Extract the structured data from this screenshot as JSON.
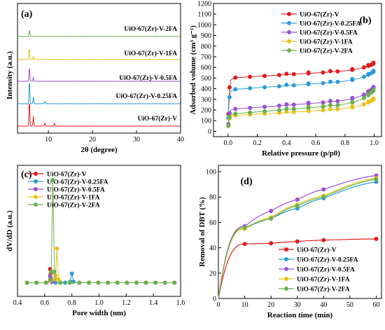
{
  "chart_data": [
    {
      "id": "a",
      "type": "line",
      "panel_label": "(a)",
      "xlabel": "2θ (degree)",
      "ylabel": "Intensity (a.u.)",
      "xlim": [
        3,
        40
      ],
      "xticks": [
        10,
        20,
        30,
        40
      ],
      "series": [
        {
          "name": "UiO-67(Zr)-V",
          "color": "#e31a1c",
          "peaks": [
            [
              5.7,
              1.0
            ],
            [
              6.6,
              0.35
            ],
            [
              9.2,
              0.12
            ],
            [
              11.4,
              0.1
            ]
          ],
          "noise": 0.04
        },
        {
          "name": "UiO-67(Zr)-V-0.25FA",
          "color": "#2b9bd6",
          "peaks": [
            [
              5.7,
              0.9
            ],
            [
              6.6,
              0.25
            ],
            [
              9.2,
              0.08
            ]
          ],
          "noise": 0.05
        },
        {
          "name": "UiO-67(Zr)-V-0.5FA",
          "color": "#9a4fd6",
          "peaks": [
            [
              5.7,
              0.55
            ],
            [
              6.6,
              0.15
            ]
          ],
          "noise": 0.05
        },
        {
          "name": "UiO-67(Zr)-V-1FA",
          "color": "#e8c21a",
          "peaks": [
            [
              5.7,
              0.45
            ],
            [
              6.6,
              0.12
            ]
          ],
          "noise": 0.06
        },
        {
          "name": "UiO-67(Zr)-V-2FA",
          "color": "#6ab04c",
          "peaks": [
            [
              5.7,
              0.25
            ]
          ],
          "noise": 0.07
        }
      ]
    },
    {
      "id": "b",
      "type": "line",
      "panel_label": "(b)",
      "xlabel": "Relative pressure (p/p0)",
      "ylabel": "Adsorbed volume (cm³ g⁻¹)",
      "xlim": [
        -0.1,
        1.05
      ],
      "ylim": [
        -50,
        1200
      ],
      "xticks": [
        0.0,
        0.2,
        0.4,
        0.6,
        0.8,
        1.0
      ],
      "yticks": [
        0,
        100,
        200,
        300,
        400,
        500,
        600,
        700,
        800,
        900,
        1000,
        1100,
        1200
      ],
      "legend_position": "top-right",
      "series": [
        {
          "name": "UiO-67(Zr)-V",
          "color": "#e31a1c",
          "y0": 30,
          "plateau": 470,
          "slope": 80,
          "end_rise": 60
        },
        {
          "name": "UiO-67(Zr)-V-0.25FA",
          "color": "#2b9bd6",
          "y0": 20,
          "plateau": 370,
          "slope": 95,
          "end_rise": 80
        },
        {
          "name": "UiO-67(Zr)-V-0.5FA",
          "color": "#9a4fd6",
          "y0": 15,
          "plateau": 190,
          "slope": 100,
          "end_rise": 110
        },
        {
          "name": "UiO-67(Zr)-V-1FA",
          "color": "#e8c21a",
          "y0": 10,
          "plateau": 135,
          "slope": 80,
          "end_rise": 80
        },
        {
          "name": "UiO-67(Zr)-V-2FA",
          "color": "#6ab04c",
          "y0": 10,
          "plateau": 150,
          "slope": 110,
          "end_rise": 120
        }
      ]
    },
    {
      "id": "c",
      "type": "line",
      "panel_label": "(c)",
      "xlabel": "Pore width (nm)",
      "ylabel": "dV/dD (a.u.)",
      "xlim": [
        0.4,
        1.6
      ],
      "ylim": [
        0,
        1.15
      ],
      "xticks": [
        0.4,
        0.6,
        0.8,
        1.0,
        1.2,
        1.4,
        1.6
      ],
      "legend_position": "top-left",
      "series": [
        {
          "name": "UiO-67(Zr)-V",
          "color": "#e31a1c",
          "peaks": [
            [
              0.64,
              0.12
            ]
          ]
        },
        {
          "name": "UiO-67(Zr)-V-0.25FA",
          "color": "#2b9bd6",
          "peaks": [
            [
              0.8,
              0.08
            ]
          ]
        },
        {
          "name": "UiO-67(Zr)-V-0.5FA",
          "color": "#9a4fd6",
          "peaks": [
            [
              0.64,
              0.06
            ]
          ]
        },
        {
          "name": "UiO-67(Zr)-V-1FA",
          "color": "#e8c21a",
          "peaks": [
            [
              0.69,
              0.3
            ]
          ]
        },
        {
          "name": "UiO-67(Zr)-V-2FA",
          "color": "#6ab04c",
          "peaks": [
            [
              0.66,
              0.9
            ]
          ]
        }
      ]
    },
    {
      "id": "d",
      "type": "line",
      "panel_label": "(d)",
      "xlabel": "Reaction time (min)",
      "ylabel": "Removal of DBT (%)",
      "xlim": [
        0,
        62
      ],
      "ylim": [
        0,
        105
      ],
      "xticks": [
        0,
        10,
        20,
        30,
        40,
        50,
        60
      ],
      "yticks": [
        0,
        20,
        40,
        60,
        80,
        100
      ],
      "legend_position": "bottom-right",
      "x": [
        10,
        20,
        30,
        40,
        60
      ],
      "series": [
        {
          "name": "UiO-67(Zr)-V",
          "color": "#e31a1c",
          "values": [
            43,
            43.5,
            45,
            46,
            47
          ]
        },
        {
          "name": "UiO-67(Zr)-V-0.25FA",
          "color": "#2b9bd6",
          "values": [
            55,
            63,
            71,
            79,
            92
          ]
        },
        {
          "name": "UiO-67(Zr)-V-0.5FA",
          "color": "#9a4fd6",
          "values": [
            57,
            69,
            78,
            86,
            97
          ]
        },
        {
          "name": "UiO-67(Zr)-V-1FA",
          "color": "#e8c21a",
          "values": [
            55,
            64,
            74,
            81,
            95
          ]
        },
        {
          "name": "UiO-67(Zr)-V-2FA",
          "color": "#6ab04c",
          "values": [
            56,
            63,
            73,
            80,
            94
          ]
        }
      ]
    }
  ]
}
